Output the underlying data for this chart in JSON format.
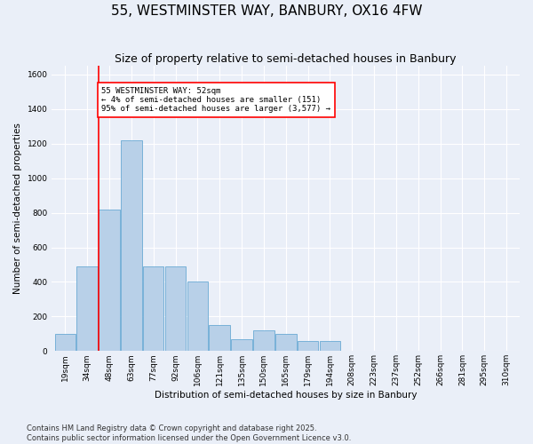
{
  "title": "55, WESTMINSTER WAY, BANBURY, OX16 4FW",
  "subtitle": "Size of property relative to semi-detached houses in Banbury",
  "xlabel": "Distribution of semi-detached houses by size in Banbury",
  "ylabel": "Number of semi-detached properties",
  "categories": [
    "19sqm",
    "34sqm",
    "48sqm",
    "63sqm",
    "77sqm",
    "92sqm",
    "106sqm",
    "121sqm",
    "135sqm",
    "150sqm",
    "165sqm",
    "179sqm",
    "194sqm",
    "208sqm",
    "223sqm",
    "237sqm",
    "252sqm",
    "266sqm",
    "281sqm",
    "295sqm",
    "310sqm"
  ],
  "values": [
    100,
    490,
    820,
    1220,
    490,
    490,
    400,
    150,
    70,
    120,
    100,
    60,
    60,
    0,
    0,
    0,
    0,
    0,
    0,
    0,
    0
  ],
  "bar_color": "#b8d0e8",
  "bar_edge_color": "#6aaad4",
  "vline_x": 1.5,
  "annotation_text": "55 WESTMINSTER WAY: 52sqm\n← 4% of semi-detached houses are smaller (151)\n95% of semi-detached houses are larger (3,577) →",
  "annotation_box_color": "white",
  "annotation_border_color": "red",
  "vline_color": "red",
  "ylim": [
    0,
    1650
  ],
  "yticks": [
    0,
    200,
    400,
    600,
    800,
    1000,
    1200,
    1400,
    1600
  ],
  "footer_text": "Contains HM Land Registry data © Crown copyright and database right 2025.\nContains public sector information licensed under the Open Government Licence v3.0.",
  "background_color": "#eaeff8",
  "plot_background_color": "#eaeff8",
  "title_fontsize": 11,
  "subtitle_fontsize": 9,
  "label_fontsize": 7.5,
  "tick_fontsize": 6.5,
  "footer_fontsize": 6,
  "ann_fontsize": 6.5,
  "figsize": [
    6.0,
    5.0
  ],
  "dpi": 100
}
